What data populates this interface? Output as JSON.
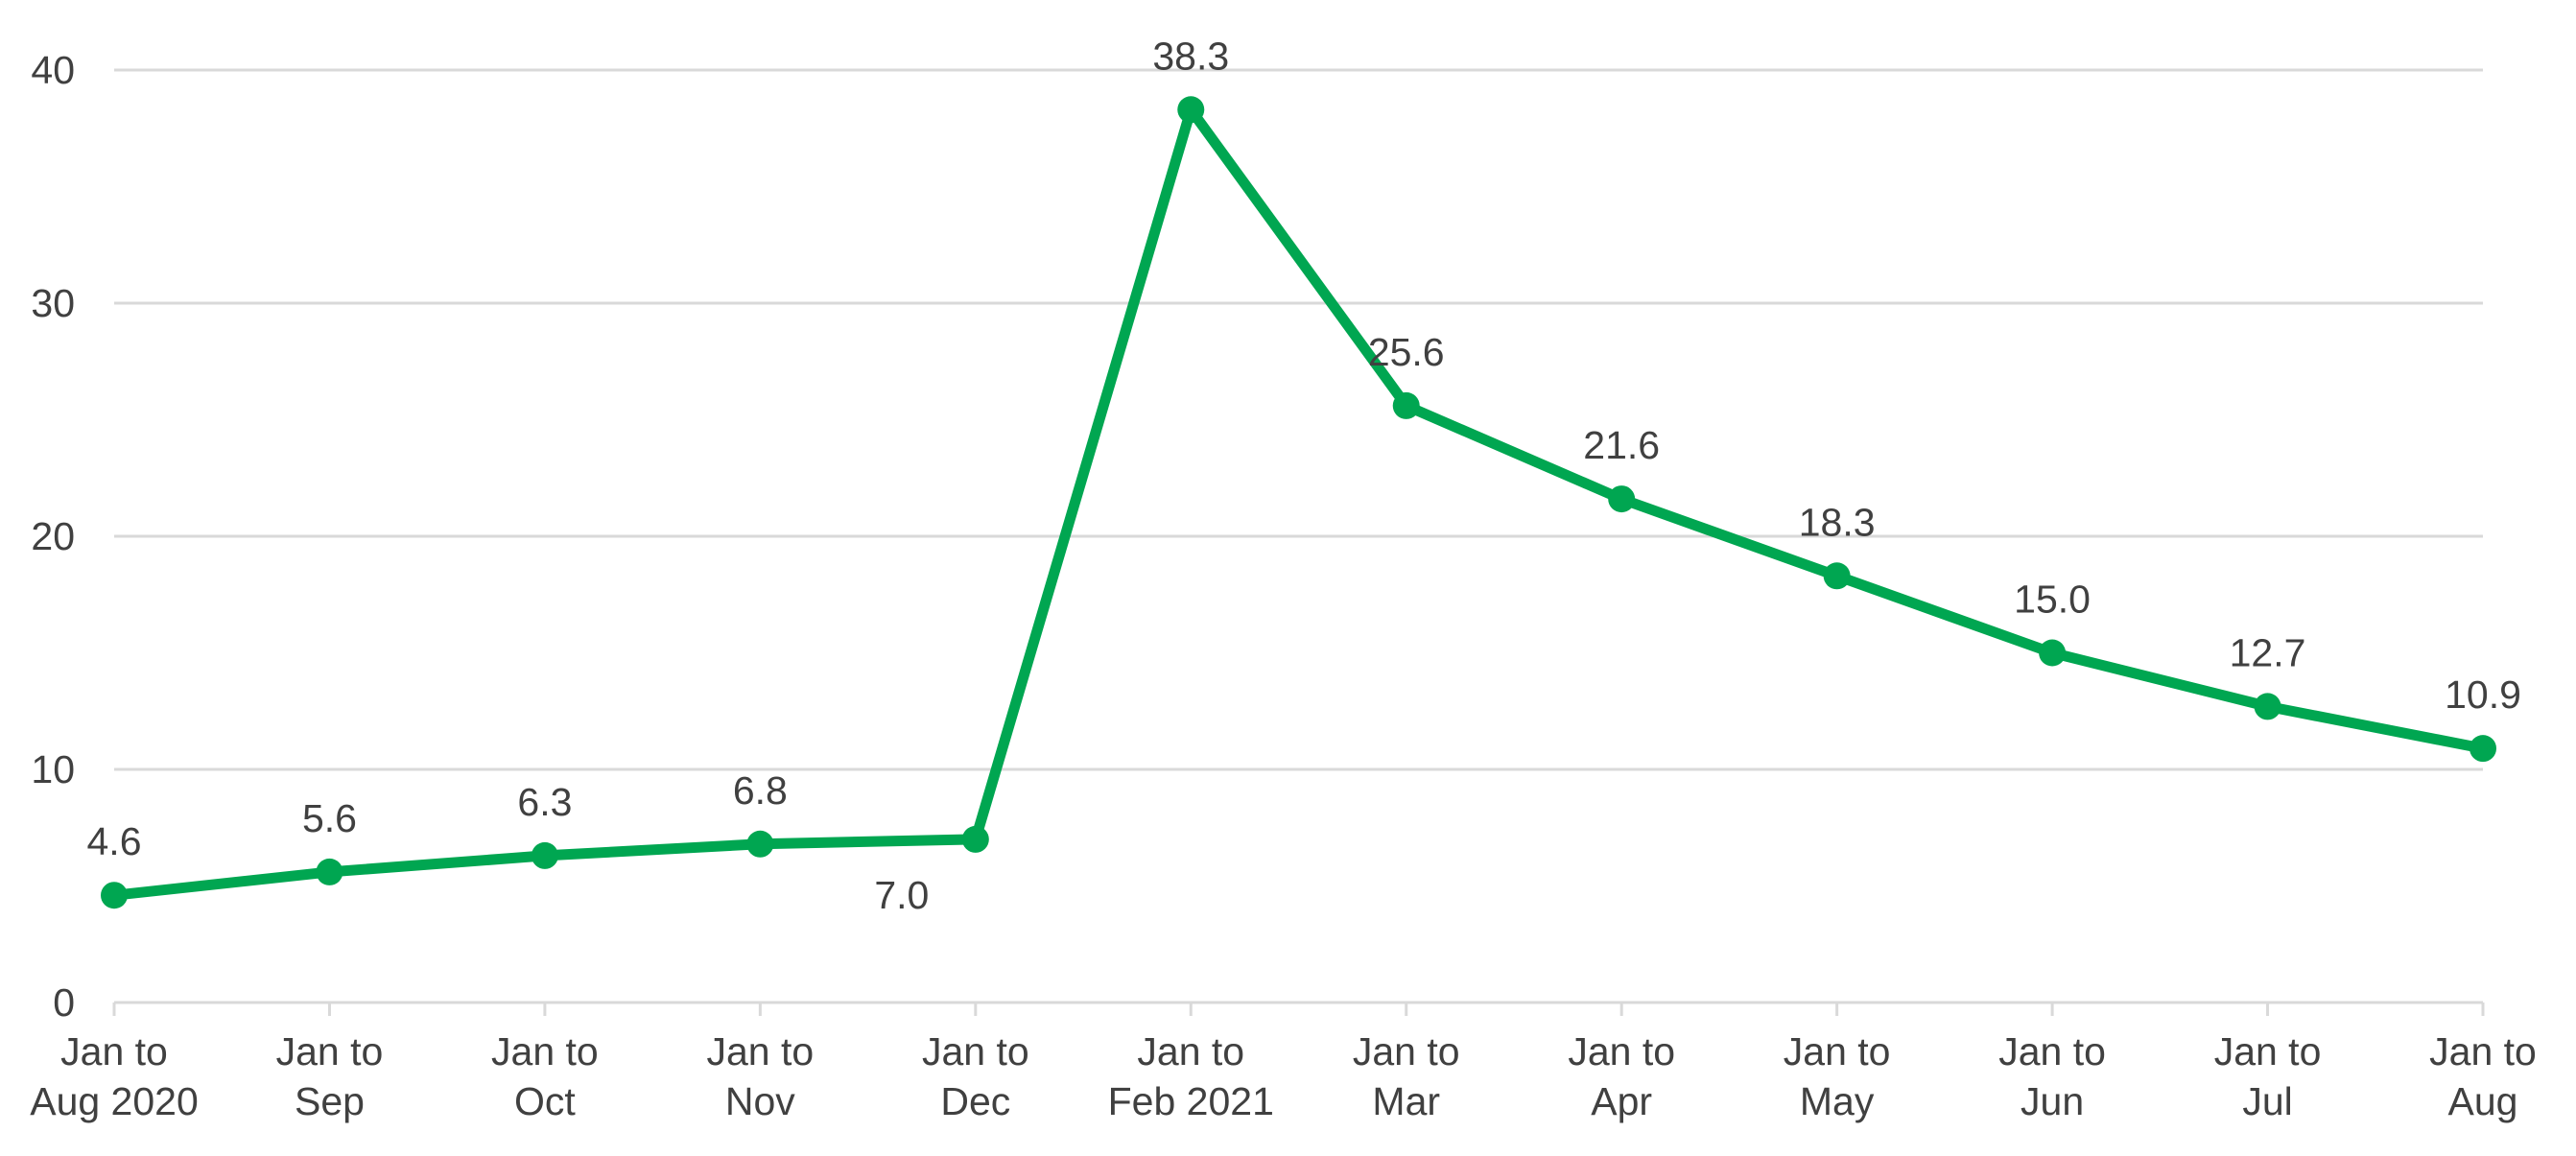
{
  "chart_data": {
    "type": "line",
    "title": "",
    "xlabel": "",
    "ylabel": "",
    "categories": [
      [
        "Jan to",
        "Aug 2020"
      ],
      [
        "Jan to",
        "Sep"
      ],
      [
        "Jan to",
        "Oct"
      ],
      [
        "Jan to",
        "Nov"
      ],
      [
        "Jan to",
        "Dec"
      ],
      [
        "Jan to",
        "Feb 2021"
      ],
      [
        "Jan to",
        "Mar"
      ],
      [
        "Jan to",
        "Apr"
      ],
      [
        "Jan to",
        "May"
      ],
      [
        "Jan to",
        "Jun"
      ],
      [
        "Jan to",
        "Jul"
      ],
      [
        "Jan to",
        "Aug"
      ]
    ],
    "series": [
      {
        "values": [
          4.6,
          5.6,
          6.3,
          6.8,
          7.0,
          38.3,
          25.6,
          21.6,
          18.3,
          15.0,
          12.7,
          10.9
        ],
        "labels": [
          "4.6",
          "5.6",
          "6.3",
          "6.8",
          "7.0",
          "38.3",
          "25.6",
          "21.6",
          "18.3",
          "15.0",
          "12.7",
          "10.9"
        ],
        "color": "#00A651"
      }
    ],
    "ylim": [
      0,
      40
    ],
    "yticks": [
      0,
      10,
      20,
      30,
      40
    ],
    "ytick_labels": [
      "0",
      "10",
      "20",
      "30",
      "40"
    ],
    "grid": true,
    "legend": "none",
    "colors": {
      "gridline": "#D9D9D9",
      "axis": "#D9D9D9",
      "text": "#404040"
    }
  }
}
